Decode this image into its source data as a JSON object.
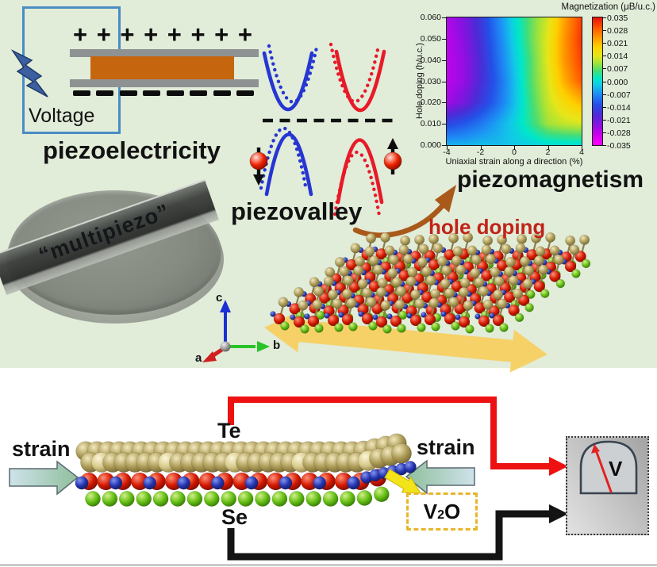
{
  "colors": {
    "background_green": "#e1ecd9",
    "circuit_blue": "#4a8cc4",
    "bolt_blue": "#3b5fa0",
    "plate_gray": "#8f9292",
    "dielectric_orange": "#c5660f",
    "band_blue": "#2636d2",
    "band_red": "#e81a28",
    "hole_doping_red": "#c02318",
    "curved_arrow_orange": "#a9591a",
    "strain_arrow_yellow": "#f6cf5f",
    "charge_arrow_yellow": "#f2e418",
    "v2o_border_yellow": "#e6b62c",
    "wire_red": "#ee1111",
    "wire_black": "#141414",
    "needle_red": "#e32222",
    "strain_gradient": [
      "#cfe2ea",
      "#8fbf9c"
    ],
    "axes_colors": {
      "a": "#cf2020",
      "b": "#27c427",
      "c": "#1c2fd4"
    },
    "atoms": {
      "gold": [
        "#f2e8bc",
        "#ab9a56",
        "#6e6030"
      ],
      "gold_light": [
        "#fdf6d8",
        "#d6c98a",
        "#8a7a40"
      ],
      "red": [
        "#ff9078",
        "#d41800",
        "#6e0a00"
      ],
      "green": [
        "#d2f08a",
        "#62bd12",
        "#2f6e06"
      ],
      "blue": [
        "#8494f0",
        "#2434ae",
        "#101a5e"
      ],
      "gray": [
        "#f0f0f0",
        "#9a9a9a",
        "#555555"
      ],
      "spin": [
        "#ffe0d8",
        "#ee2200",
        "#7a0800"
      ]
    }
  },
  "top_panel": {
    "voltage_label": "Voltage",
    "piezoelectricity_label": "piezoelectricity",
    "piezovalley_label": "piezovalley",
    "piezomagnetism_label": "piezomagnetism",
    "hole_doping_label": "hole doping",
    "multipiezo_label": "“multipiezo”",
    "plus_sign": "+",
    "plus_count": 8,
    "minus_count": 8,
    "axes": {
      "a": "a",
      "b": "b",
      "c": "c"
    }
  },
  "chart_data": {
    "type": "heatmap",
    "title": "Magnetization (μB/u.c.)",
    "xlabel": "Uniaxial strain along a direction (%)",
    "xlabel_parts": {
      "prefix": "Uniaxial strain along",
      "italic": "a",
      "suffix": "direction (%)"
    },
    "ylabel": "Hole doping (h/u.c.)",
    "x": [
      -4,
      -3,
      -2,
      -1,
      0,
      1,
      2,
      3,
      4
    ],
    "y_rows_top_to_bottom": [
      0.06,
      0.05,
      0.04,
      0.03,
      0.02,
      0.01,
      0.0
    ],
    "values_top_to_bottom": [
      [
        -0.027,
        -0.023,
        -0.016,
        -0.008,
        0.0,
        0.007,
        0.013,
        0.023,
        0.031
      ],
      [
        -0.028,
        -0.024,
        -0.017,
        -0.009,
        -0.001,
        0.007,
        0.014,
        0.024,
        0.032
      ],
      [
        -0.028,
        -0.025,
        -0.018,
        -0.01,
        -0.002,
        0.006,
        0.014,
        0.024,
        0.031
      ],
      [
        -0.028,
        -0.025,
        -0.018,
        -0.011,
        -0.003,
        0.006,
        0.013,
        0.022,
        0.029
      ],
      [
        -0.026,
        -0.022,
        -0.016,
        -0.01,
        -0.003,
        0.005,
        0.012,
        0.017,
        0.021
      ],
      [
        -0.014,
        -0.012,
        -0.009,
        -0.005,
        -0.001,
        0.004,
        0.01,
        0.012,
        0.013
      ],
      [
        -0.004,
        -0.004,
        -0.003,
        -0.003,
        -0.002,
        -0.001,
        0.0,
        0.0,
        0.0
      ]
    ],
    "zlim": [
      -0.035,
      0.035
    ],
    "x_ticks": [
      "-4",
      "-2",
      "0",
      "2",
      "4"
    ],
    "y_ticks_top_to_bottom": [
      "0.060",
      "0.050",
      "0.040",
      "0.030",
      "0.020",
      "0.010",
      "0.000"
    ],
    "colorbar_ticks_top_to_bottom": [
      "0.035",
      "0.028",
      "0.021",
      "0.014",
      "0.007",
      "0.000",
      "-0.007",
      "-0.014",
      "-0.021",
      "-0.028",
      "-0.035"
    ],
    "colormap_stops": [
      [
        0.0,
        "#ff00ff"
      ],
      [
        0.08,
        "#cc00ee"
      ],
      [
        0.16,
        "#8812e0"
      ],
      [
        0.24,
        "#4d2bd6"
      ],
      [
        0.32,
        "#2451e8"
      ],
      [
        0.4,
        "#1e8cf5"
      ],
      [
        0.47,
        "#12c8e8"
      ],
      [
        0.52,
        "#00e8c8"
      ],
      [
        0.58,
        "#44dd77"
      ],
      [
        0.64,
        "#9fe23c"
      ],
      [
        0.7,
        "#e6e619"
      ],
      [
        0.77,
        "#ffd000"
      ],
      [
        0.84,
        "#ff9900"
      ],
      [
        0.92,
        "#ff5500"
      ],
      [
        1.0,
        "#e60f0f"
      ]
    ],
    "grid": false,
    "legend_position": "right-colorbar"
  },
  "bottom_panel": {
    "strain_left_label": "strain",
    "strain_right_label": "strain",
    "te_label": "Te",
    "se_label": "Se",
    "v2o": {
      "v": "V",
      "sub": "2",
      "o": "O"
    },
    "voltmeter_label": "V"
  },
  "structures": {
    "lattice": {
      "rows": 7,
      "cols": 14
    },
    "chain": {
      "gold_count": 29,
      "red_count": 18,
      "blue_count": 9,
      "green_count": 18,
      "blue_tail_count": 6
    }
  }
}
